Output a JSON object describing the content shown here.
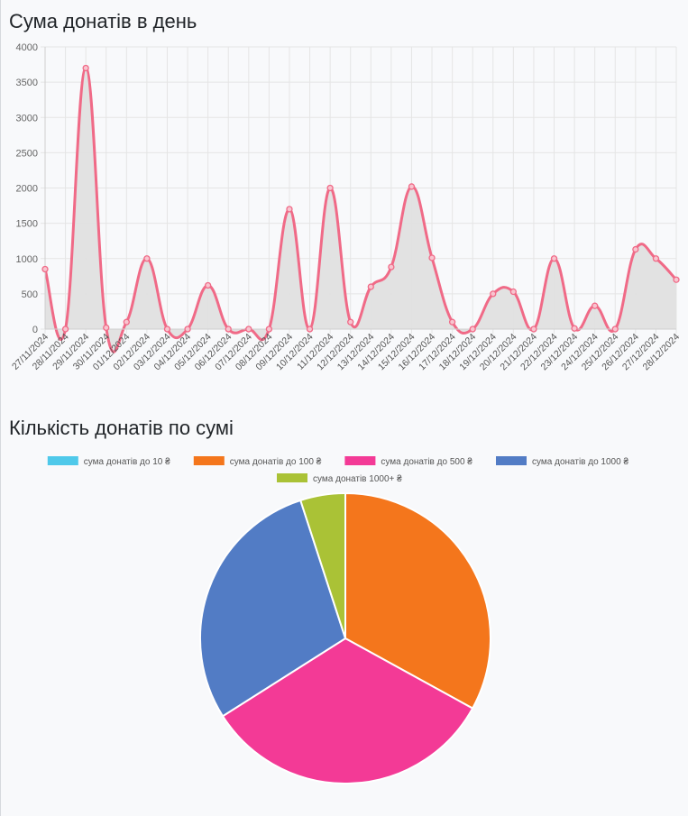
{
  "charts": {
    "line_title": "Сума донатів в день",
    "pie_title": "Кількість донатів по сумі"
  },
  "colors": {
    "line": "#f06a87",
    "area_fill": "#e0e0e0",
    "grid": "#e5e5e5"
  },
  "chart_data": [
    {
      "type": "area",
      "title": "Сума донатів в день",
      "x": [
        "27/11/2024",
        "28/11/2024",
        "29/11/2024",
        "30/11/2024",
        "01/12/2024",
        "02/12/2024",
        "03/12/2024",
        "04/12/2024",
        "05/12/2024",
        "06/12/2024",
        "07/12/2024",
        "08/12/2024",
        "09/12/2024",
        "10/12/2024",
        "11/12/2024",
        "12/12/2024",
        "13/12/2024",
        "14/12/2024",
        "15/12/2024",
        "16/12/2024",
        "17/12/2024",
        "18/12/2024",
        "19/12/2024",
        "20/12/2024",
        "21/12/2024",
        "22/12/2024",
        "23/12/2024",
        "24/12/2024",
        "25/12/2024",
        "26/12/2024",
        "27/12/2024",
        "28/12/2024"
      ],
      "values": [
        850,
        0,
        3700,
        20,
        100,
        1000,
        0,
        0,
        620,
        0,
        0,
        0,
        1700,
        0,
        2000,
        100,
        600,
        880,
        2020,
        1010,
        100,
        0,
        500,
        530,
        0,
        1000,
        10,
        330,
        0,
        1130,
        1000,
        700
      ],
      "ylim": [
        0,
        4000
      ],
      "yticks": [
        0,
        500,
        1000,
        1500,
        2000,
        2500,
        3000,
        3500,
        4000
      ],
      "grid": true,
      "legend": "none"
    },
    {
      "type": "pie",
      "title": "Кількість донатів по сумі",
      "legend_position": "top",
      "slices": [
        {
          "label": "сума донатів до 10 ₴",
          "value": 0,
          "color": "#4fc9ea"
        },
        {
          "label": "сума донатів до 100 ₴",
          "value": 33,
          "color": "#f4761c"
        },
        {
          "label": "сума донатів до 500 ₴",
          "value": 33,
          "color": "#f33a96"
        },
        {
          "label": "сума донатів до 1000 ₴",
          "value": 29,
          "color": "#527cc5"
        },
        {
          "label": "сума донатів 1000+ ₴",
          "value": 5,
          "color": "#aac236"
        }
      ]
    }
  ]
}
